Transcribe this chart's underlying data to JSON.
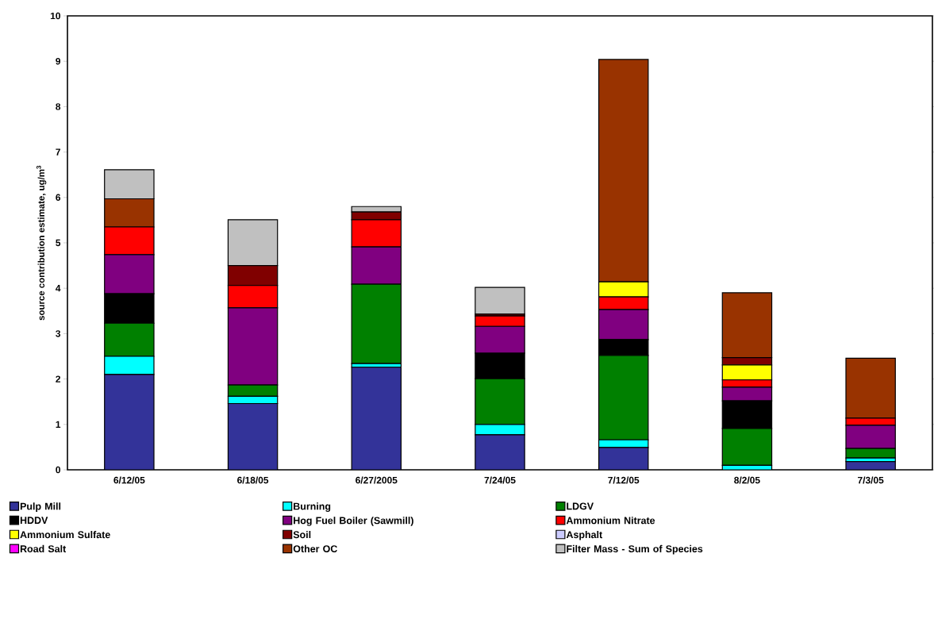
{
  "chart_data": {
    "type": "bar",
    "stacked": true,
    "ylabel": "source contribution estimate, ug/m$^{3}$",
    "categories": [
      "6/12/05",
      "6/18/05",
      "6/27/2005",
      "7/24/05",
      "7/12/05",
      "8/2/05",
      "7/3/05"
    ],
    "ylim": [
      0,
      10
    ],
    "yticks": [
      0,
      1,
      2,
      3,
      4,
      5,
      6,
      7,
      8,
      9,
      10
    ],
    "grid": false,
    "legend": "bottom",
    "series": [
      {
        "name": "Pulp Mill",
        "color": "#333399",
        "values": [
          2.1,
          1.46,
          2.26,
          0.77,
          0.49,
          0,
          0.18
        ]
      },
      {
        "name": "Burning",
        "color": "#00ffff",
        "values": [
          0.4,
          0.16,
          0.08,
          0.23,
          0.17,
          0.1,
          0.08
        ]
      },
      {
        "name": "LDGV",
        "color": "#008000",
        "values": [
          0.73,
          0.25,
          1.75,
          1.01,
          1.86,
          0.81,
          0.21
        ]
      },
      {
        "name": "HDDV",
        "color": "#000000",
        "values": [
          0.65,
          0,
          0,
          0.56,
          0.35,
          0.61,
          null
        ]
      },
      {
        "name": "Hog Fuel Boiler (Sawmill)",
        "color": "#800080",
        "values": [
          0.86,
          1.7,
          0.82,
          0.59,
          0.66,
          0.3,
          0.51
        ]
      },
      {
        "name": "Ammonium Nitrate",
        "color": "#ff0000",
        "values": [
          0.61,
          0.49,
          0.6,
          0.23,
          0.28,
          0.16,
          0.16
        ]
      },
      {
        "name": "Ammonium Sulfate",
        "color": "#ffff00",
        "values": [
          0,
          0,
          0,
          0,
          0.33,
          0.33,
          0
        ]
      },
      {
        "name": "Soil",
        "color": "#800000",
        "values": [
          null,
          0.44,
          0.17,
          0.04,
          0,
          0.16,
          null
        ]
      },
      {
        "name": "Asphalt",
        "color": "#ccccff",
        "values": [
          0,
          0,
          0,
          0,
          0,
          0,
          0
        ]
      },
      {
        "name": "Road Salt",
        "color": "#ff00ff",
        "values": [
          0,
          0,
          0,
          0,
          0,
          0,
          0
        ]
      },
      {
        "name": "Other OC",
        "color": "#993300",
        "values": [
          0.62,
          0,
          0,
          0,
          4.9,
          1.43,
          1.32
        ]
      },
      {
        "name": "Filter Mass - Sum of Species",
        "color": "#c0c0c0",
        "values": [
          0.64,
          1.01,
          0.12,
          0.59,
          0,
          0,
          0
        ]
      }
    ]
  }
}
